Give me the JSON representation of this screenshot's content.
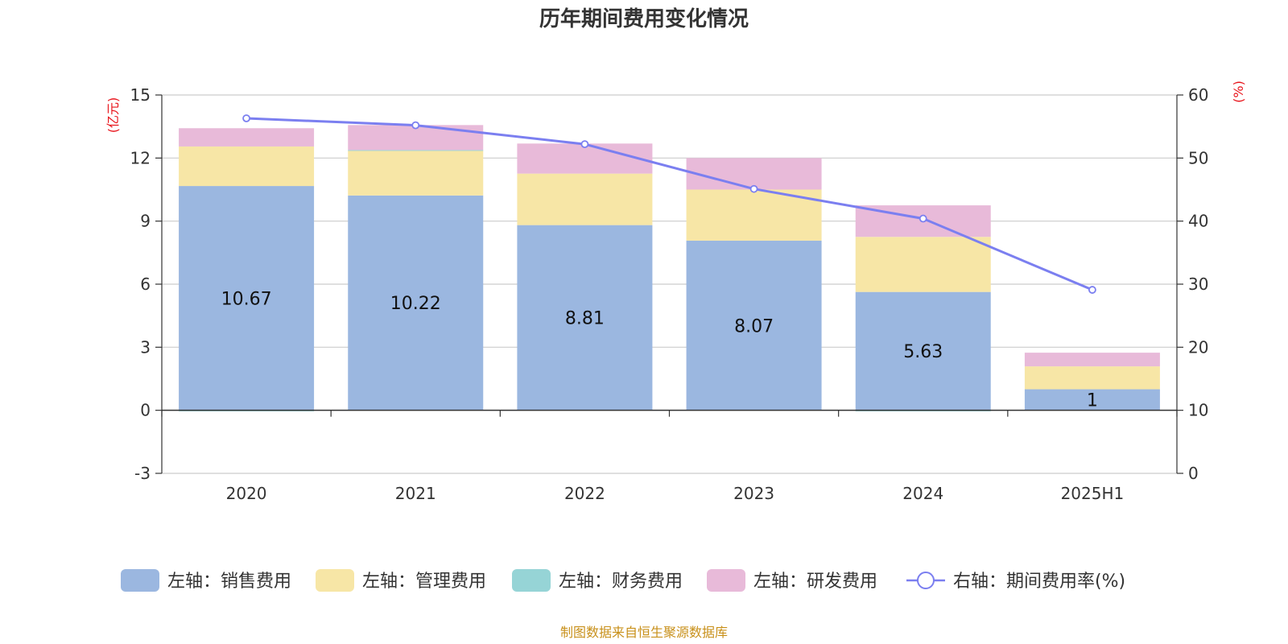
{
  "chart_data": {
    "type": "bar",
    "title": "历年期间费用变化情况",
    "categories": [
      "2020",
      "2021",
      "2022",
      "2023",
      "2024",
      "2025H1"
    ],
    "left_axis": {
      "unit": "(亿元)",
      "ylim": [
        -3,
        15
      ],
      "ticks": [
        15,
        12,
        9,
        6,
        3,
        0,
        -3
      ]
    },
    "right_axis": {
      "unit": "(%)",
      "ylim": [
        0,
        60
      ],
      "ticks": [
        60,
        50,
        40,
        30,
        20,
        10,
        0
      ]
    },
    "series": [
      {
        "name": "左轴：销售费用",
        "type": "bar",
        "axis": "left",
        "color": "#9bb7e0",
        "values": [
          10.67,
          10.22,
          8.81,
          8.07,
          5.63,
          1
        ],
        "labels": [
          "10.67",
          "10.22",
          "8.81",
          "8.07",
          "5.63",
          "1"
        ]
      },
      {
        "name": "左轴：管理费用",
        "type": "bar",
        "axis": "left",
        "color": "#f7e6a6",
        "values": [
          1.88,
          2.14,
          2.45,
          2.43,
          2.62,
          1.09
        ]
      },
      {
        "name": "左轴：财务费用",
        "type": "bar",
        "axis": "left",
        "color": "#96d4d6",
        "values": [
          -0.05,
          0.02,
          0.0,
          0.0,
          -0.05,
          0.0
        ]
      },
      {
        "name": "左轴：研发费用",
        "type": "bar",
        "axis": "left",
        "color": "#e8bad9",
        "values": [
          0.87,
          1.19,
          1.43,
          1.5,
          1.5,
          0.65
        ]
      },
      {
        "name": "右轴：期间费用率(%)",
        "type": "line",
        "axis": "right",
        "color": "#7b7ff0",
        "values": [
          56.3,
          55.2,
          52.2,
          45.1,
          40.4,
          29.1
        ]
      }
    ],
    "grid": true,
    "legend_position": "bottom"
  },
  "source": "制图数据来自恒生聚源数据库"
}
